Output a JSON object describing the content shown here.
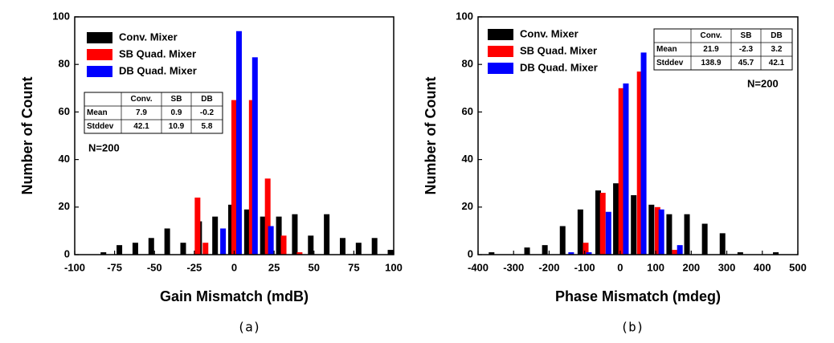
{
  "chart_data": [
    {
      "type": "bar",
      "x_label": "Gain Mismatch (mdB)",
      "y_label": "Number of Count",
      "caption": "(a)",
      "xlim": [
        -100,
        100
      ],
      "xticks": [
        -100,
        -75,
        -50,
        -25,
        0,
        25,
        50,
        75,
        100
      ],
      "ylim": [
        0,
        100
      ],
      "yticks": [
        0,
        20,
        40,
        60,
        80,
        100
      ],
      "legend": "upper left",
      "annotation": "N=200",
      "series": [
        {
          "name": "Conv. Mixer",
          "color": "#000000",
          "x": [
            -82,
            -72,
            -62,
            -52,
            -42,
            -32,
            -22,
            -12,
            -2,
            8,
            18,
            28,
            38,
            48,
            58,
            68,
            78,
            88,
            98
          ],
          "values": [
            1,
            4,
            5,
            7,
            11,
            5,
            14,
            16,
            21,
            19,
            16,
            16,
            17,
            8,
            17,
            7,
            5,
            7,
            2
          ]
        },
        {
          "name": "SB Quad. Mixer",
          "color": "#ff0000",
          "x": [
            -23,
            -18,
            0,
            11,
            21,
            31,
            41
          ],
          "values": [
            24,
            5,
            65,
            65,
            32,
            8,
            1
          ]
        },
        {
          "name": "DB Quad. Mixer",
          "color": "#0000ff",
          "x": [
            -7,
            3,
            13,
            23
          ],
          "values": [
            11,
            94,
            83,
            12
          ]
        }
      ],
      "table": {
        "header": [
          "Conv.",
          "SB",
          "DB"
        ],
        "rows": [
          {
            "label": "Mean",
            "values": [
              "7.9",
              "0.9",
              "-0.2"
            ]
          },
          {
            "label": "Stddev",
            "values": [
              "42.1",
              "10.9",
              "5.8"
            ]
          }
        ]
      }
    },
    {
      "type": "bar",
      "x_label": "Phase Mismatch (mdeg)",
      "y_label": "Number of Count",
      "caption": "(b)",
      "xlim": [
        -400,
        500
      ],
      "xticks": [
        -400,
        -300,
        -200,
        -100,
        0,
        100,
        200,
        300,
        400,
        500
      ],
      "ylim": [
        0,
        100
      ],
      "yticks": [
        0,
        20,
        40,
        60,
        80,
        100
      ],
      "legend": "upper left",
      "annotation": "N=200",
      "series": [
        {
          "name": "Conv. Mixer",
          "color": "#000000",
          "x": [
            -362,
            -262,
            -212,
            -162,
            -112,
            -62,
            -12,
            38,
            88,
            138,
            188,
            238,
            288,
            338,
            438
          ],
          "values": [
            1,
            3,
            4,
            12,
            19,
            27,
            30,
            25,
            21,
            17,
            17,
            13,
            9,
            1,
            1
          ]
        },
        {
          "name": "SB Quad. Mixer",
          "color": "#ff0000",
          "x": [
            -97,
            -49,
            3,
            55,
            105,
            154
          ],
          "values": [
            5,
            26,
            70,
            77,
            20,
            2
          ]
        },
        {
          "name": "DB Quad. Mixer",
          "color": "#0000ff",
          "x": [
            -138,
            -88,
            -33,
            16,
            66,
            116,
            168
          ],
          "values": [
            1,
            1,
            18,
            72,
            85,
            19,
            4
          ]
        }
      ],
      "table": {
        "header": [
          "Conv.",
          "SB",
          "DB"
        ],
        "rows": [
          {
            "label": "Mean",
            "values": [
              "21.9",
              "-2.3",
              "3.2"
            ]
          },
          {
            "label": "Stddev",
            "values": [
              "138.9",
              "45.7",
              "42.1"
            ]
          }
        ]
      }
    }
  ]
}
